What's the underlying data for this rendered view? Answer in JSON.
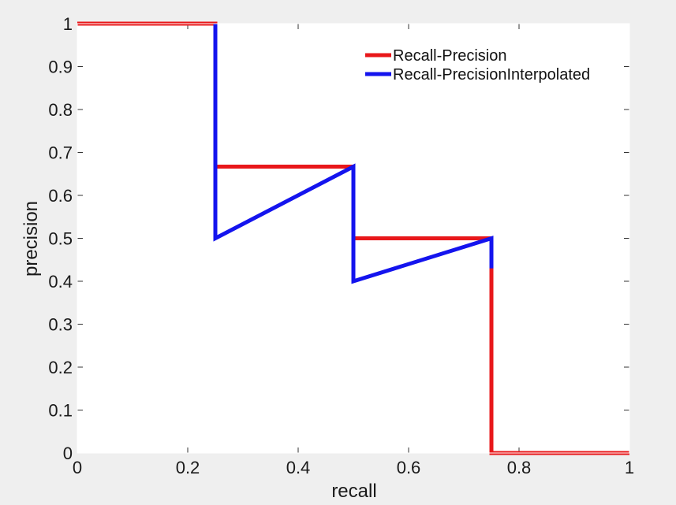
{
  "chart_data": {
    "type": "line",
    "xlabel": "recall",
    "ylabel": "precision",
    "xlim": [
      0,
      1
    ],
    "ylim": [
      0,
      1
    ],
    "xticks": [
      "0",
      "0.2",
      "0.4",
      "0.6",
      "0.8",
      "1"
    ],
    "yticks": [
      "0",
      "0.1",
      "0.2",
      "0.3",
      "0.4",
      "0.5",
      "0.6",
      "0.7",
      "0.8",
      "0.9",
      "1"
    ],
    "grid": false,
    "legend_position": "top-right",
    "series": [
      {
        "name": "Recall-Precision",
        "color": "#e8171a",
        "x": [
          0,
          0.25,
          0.25,
          0.5,
          0.5,
          0.75,
          0.75,
          1
        ],
        "y": [
          1,
          1,
          0.667,
          0.667,
          0.5,
          0.5,
          0,
          0
        ]
      },
      {
        "name": "Recall-PrecisionInterpolated",
        "color": "#1414ee",
        "x": [
          0.25,
          0.25,
          0.5,
          0.5,
          0.75,
          0.75
        ],
        "y": [
          1,
          0.5,
          0.667,
          0.4,
          0.5,
          0.43
        ]
      }
    ]
  }
}
